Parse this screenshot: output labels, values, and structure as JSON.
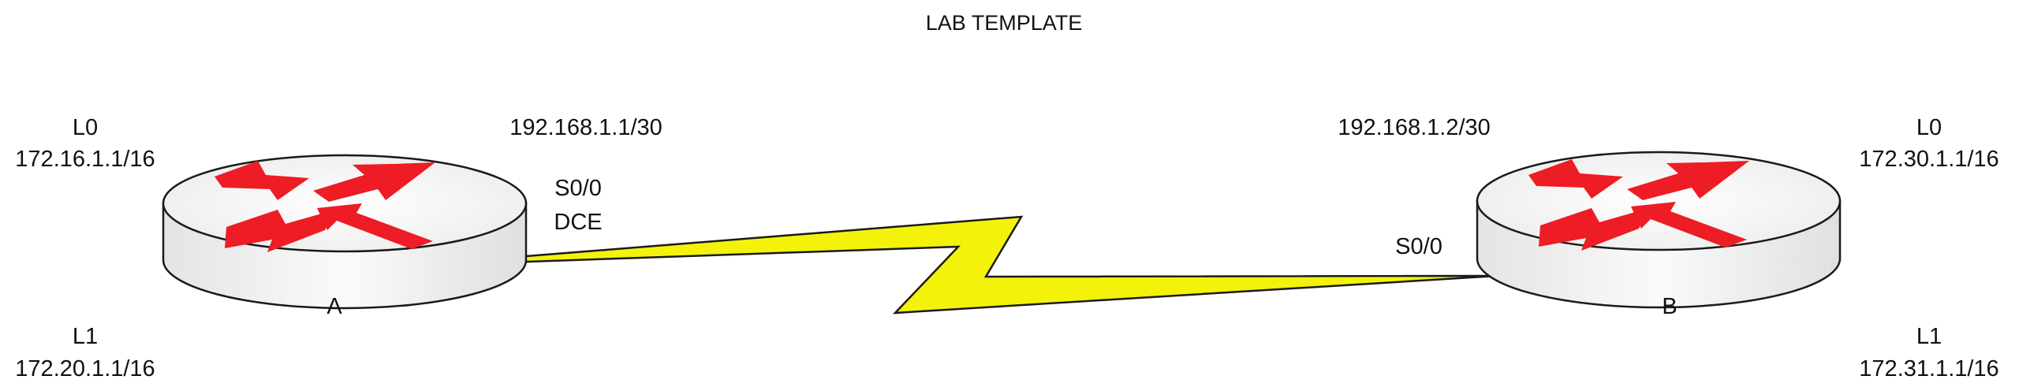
{
  "title": "LAB TEMPLATE",
  "routers": [
    {
      "name": "A",
      "loopbacks": [
        {
          "name": "L0",
          "address": "172.16.1.1/16"
        },
        {
          "name": "L1",
          "address": "172.20.1.1/16"
        }
      ],
      "serial": {
        "interface": "S0/0",
        "role": "DCE",
        "address": "192.168.1.1/30"
      }
    },
    {
      "name": "B",
      "loopbacks": [
        {
          "name": "L0",
          "address": "172.30.1.1/16"
        },
        {
          "name": "L1",
          "address": "172.31.1.1/16"
        }
      ],
      "serial": {
        "interface": "S0/0",
        "address": "192.168.1.2/30"
      }
    }
  ],
  "colors": {
    "router_body": "#f2f2f2",
    "router_arrows": "#ee1c24",
    "serial_link": "#f4f20a",
    "outline": "#1a1a1a",
    "text": "#111111"
  }
}
